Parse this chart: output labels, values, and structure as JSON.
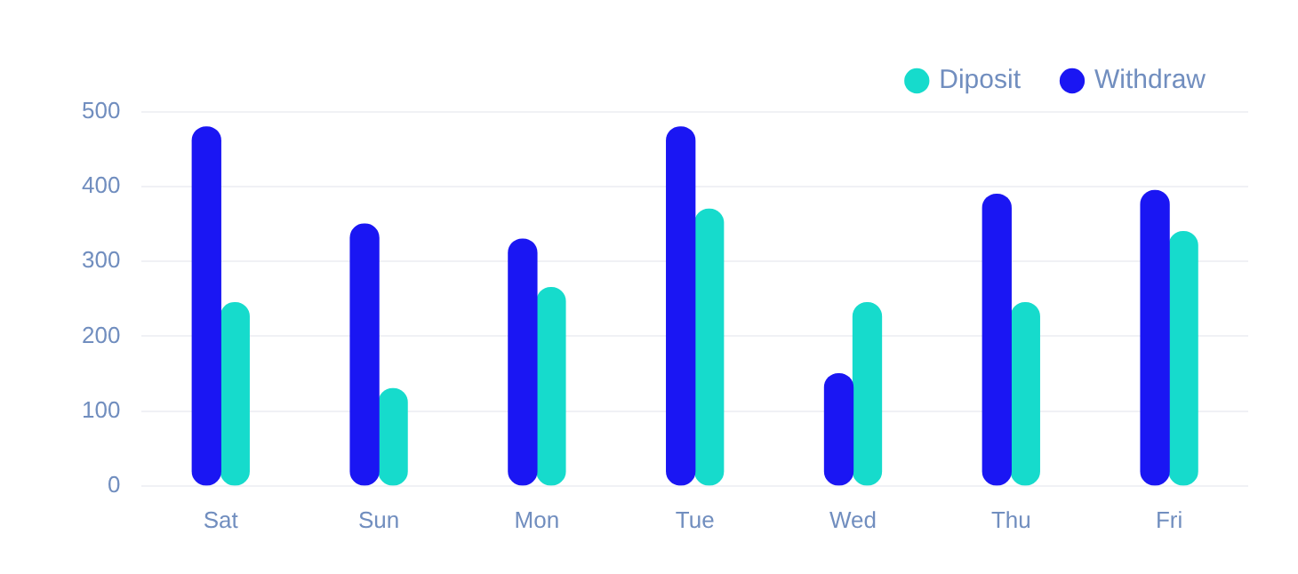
{
  "chart_data": {
    "type": "bar",
    "categories": [
      "Sat",
      "Sun",
      "Mon",
      "Tue",
      "Wed",
      "Thu",
      "Fri"
    ],
    "series": [
      {
        "name": "Withdraw",
        "color": "#1a16f3",
        "values": [
          480,
          350,
          330,
          480,
          150,
          390,
          395
        ]
      },
      {
        "name": "Diposit",
        "color": "#16dbcc",
        "values": [
          245,
          130,
          265,
          370,
          245,
          245,
          340
        ]
      }
    ],
    "ylim": [
      0,
      500
    ],
    "yticks": [
      0,
      100,
      200,
      300,
      400,
      500
    ],
    "grid": "y",
    "legend": "top right"
  }
}
